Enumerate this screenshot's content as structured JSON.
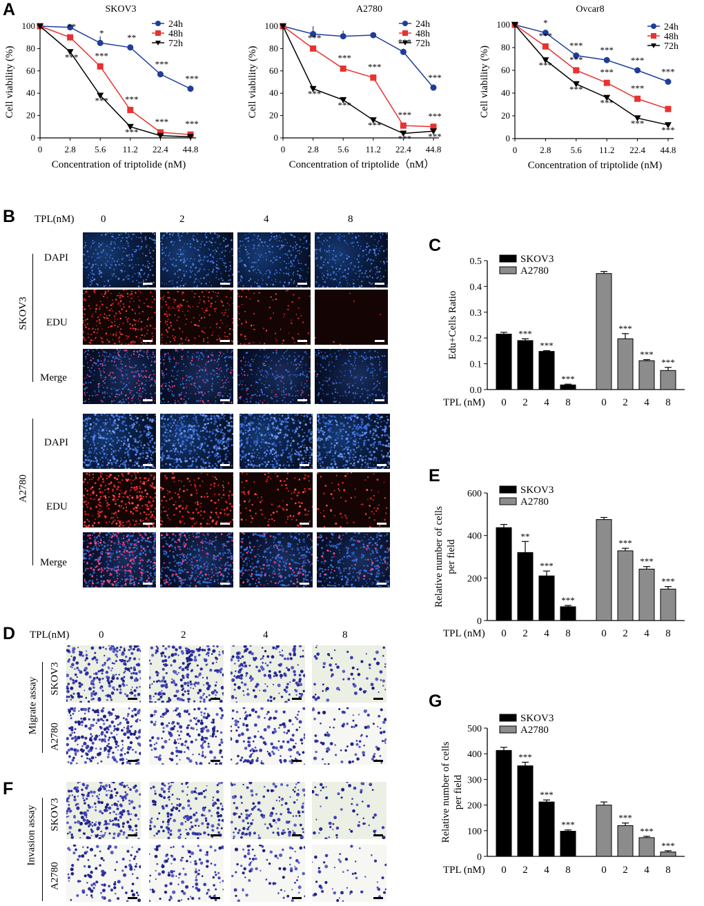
{
  "panels": {
    "a": "A",
    "b": "B",
    "c": "C",
    "d": "D",
    "e": "E",
    "f": "F",
    "g": "G"
  },
  "viability": {
    "ylabel": "Cell viability  (%)",
    "xlabel": "Concentration of triptolide (nM)",
    "xlabel_a2780": "Concentration of triptolide（nM）",
    "ticks_x": [
      "0",
      "2.8",
      "5.6",
      "11.2",
      "22.4",
      "44.8"
    ],
    "ticks_y": [
      "0",
      "20",
      "40",
      "60",
      "80",
      "100"
    ],
    "legend": [
      "24h",
      "48h",
      "72h"
    ]
  },
  "chart_data": [
    {
      "type": "line",
      "title": "SKOV3",
      "xlabel": "Concentration of triptolide (nM)",
      "ylabel": "Cell viability  (%)",
      "categories": [
        "0",
        "2.8",
        "5.6",
        "11.2",
        "22.4",
        "44.8"
      ],
      "ylim": [
        0,
        100
      ],
      "series": [
        {
          "name": "24h",
          "color": "#1f3d99",
          "marker": "circle",
          "values": [
            100,
            99,
            85,
            81,
            57,
            44
          ],
          "errors": [
            0,
            0,
            6,
            2,
            0,
            3
          ],
          "stars": [
            "",
            "",
            "*",
            "**",
            "***",
            "***"
          ]
        },
        {
          "name": "48h",
          "color": "#e8322f",
          "marker": "square",
          "values": [
            100,
            90,
            64,
            25,
            5,
            3
          ],
          "errors": [
            0,
            2,
            3,
            3,
            0,
            0
          ],
          "stars": [
            "",
            "**",
            "***",
            "***",
            "***",
            "***"
          ]
        },
        {
          "name": "72h",
          "color": "#000000",
          "marker": "triangle",
          "values": [
            100,
            77,
            38,
            10,
            2,
            1
          ],
          "errors": [
            0,
            0,
            2,
            0,
            0,
            0
          ],
          "stars": [
            "",
            "***",
            "***",
            "***",
            "",
            ""
          ]
        }
      ]
    },
    {
      "type": "line",
      "title": "A2780",
      "xlabel": "Concentration of triptolide（nM）",
      "ylabel": "Cell viability  (%)",
      "categories": [
        "0",
        "2.8",
        "5.6",
        "11.2",
        "22.4",
        "44.8"
      ],
      "ylim": [
        0,
        100
      ],
      "series": [
        {
          "name": "24h",
          "color": "#1f3d99",
          "marker": "circle",
          "values": [
            100,
            93,
            91,
            92,
            77,
            45
          ],
          "errors": [
            0,
            7,
            5,
            0,
            3,
            3
          ],
          "stars": [
            "",
            "",
            "",
            "",
            "***",
            "***"
          ]
        },
        {
          "name": "48h",
          "color": "#e8322f",
          "marker": "square",
          "values": [
            100,
            80,
            62,
            54,
            11,
            10
          ],
          "errors": [
            0,
            0,
            0,
            0,
            0,
            0
          ],
          "stars": [
            "",
            "***",
            "***",
            "***",
            "***",
            "***"
          ]
        },
        {
          "name": "72h",
          "color": "#000000",
          "marker": "triangle",
          "values": [
            100,
            44,
            34,
            16,
            4,
            6
          ],
          "errors": [
            0,
            0,
            2,
            0,
            0,
            0
          ],
          "stars": [
            "",
            "***",
            "***",
            "***",
            "***",
            "***"
          ]
        }
      ]
    },
    {
      "type": "line",
      "title": "Ovcar8",
      "xlabel": "Concentration of triptolide (nM)",
      "ylabel": "Cell viability  (%)",
      "categories": [
        "0",
        "2.8",
        "5.6",
        "11.2",
        "22.4",
        "44.8"
      ],
      "ylim": [
        0,
        100
      ],
      "series": [
        {
          "name": "24h",
          "color": "#1f3d99",
          "marker": "circle",
          "values": [
            100,
            93,
            73,
            69,
            60,
            50
          ],
          "errors": [
            0,
            0,
            0,
            0,
            0,
            0
          ],
          "stars": [
            "",
            "*",
            "***",
            "***",
            "***",
            "***"
          ]
        },
        {
          "name": "48h",
          "color": "#e8322f",
          "marker": "square",
          "values": [
            100,
            81,
            60,
            49,
            35,
            26
          ],
          "errors": [
            0,
            0,
            0,
            0,
            0,
            0
          ],
          "stars": [
            "",
            "***",
            "***",
            "***",
            "***",
            ""
          ]
        },
        {
          "name": "72h",
          "color": "#000000",
          "marker": "triangle",
          "values": [
            100,
            69,
            48,
            36,
            18,
            12
          ],
          "errors": [
            0,
            0,
            0,
            0,
            0,
            0
          ],
          "stars": [
            "",
            "***",
            "***",
            "***",
            "***",
            "***"
          ]
        }
      ]
    },
    {
      "type": "bar",
      "panel": "C",
      "ylabel": "Edu+Cells Ratio",
      "xprefix": "TPL (nM)",
      "categories": [
        "0",
        "2",
        "4",
        "8"
      ],
      "ylim": [
        0,
        0.5
      ],
      "ticks_y": [
        "0.0",
        "0.1",
        "0.2",
        "0.3",
        "0.4",
        "0.5"
      ],
      "series": [
        {
          "name": "SKOV3",
          "color": "#000000",
          "values": [
            0.215,
            0.19,
            0.148,
            0.018
          ],
          "errors": [
            0.007,
            0.007,
            0.003,
            0.003
          ],
          "stars": [
            "",
            "***",
            "***",
            "***"
          ]
        },
        {
          "name": "A2780",
          "color": "#8c8c8c",
          "values": [
            0.45,
            0.197,
            0.112,
            0.074
          ],
          "errors": [
            0.008,
            0.02,
            0.004,
            0.012
          ],
          "stars": [
            "",
            "***",
            "***",
            "***"
          ]
        }
      ]
    },
    {
      "type": "bar",
      "panel": "E",
      "ylabel": "Relative number of cells per field",
      "xprefix": "TPL (nM)",
      "categories": [
        "0",
        "2",
        "4",
        "8"
      ],
      "ylim": [
        0,
        600
      ],
      "ticks_y": [
        "0",
        "200",
        "400",
        "600"
      ],
      "series": [
        {
          "name": "SKOV3",
          "color": "#000000",
          "values": [
            437,
            320,
            210,
            65
          ],
          "errors": [
            15,
            52,
            23,
            6
          ],
          "stars": [
            "",
            "**",
            "***",
            "***"
          ]
        },
        {
          "name": "A2780",
          "color": "#8c8c8c",
          "values": [
            475,
            328,
            242,
            148
          ],
          "errors": [
            10,
            12,
            12,
            12
          ],
          "stars": [
            "",
            "***",
            "***",
            "***"
          ]
        }
      ]
    },
    {
      "type": "bar",
      "panel": "G",
      "ylabel": "Relative number of cells per field",
      "xprefix": "TPL (nM)",
      "categories": [
        "0",
        "2",
        "4",
        "8"
      ],
      "ylim": [
        0,
        500
      ],
      "ticks_y": [
        "0",
        "100",
        "200",
        "300",
        "400",
        "500"
      ],
      "series": [
        {
          "name": "SKOV3",
          "color": "#000000",
          "values": [
            413,
            353,
            212,
            98
          ],
          "errors": [
            12,
            14,
            8,
            5
          ],
          "stars": [
            "",
            "***",
            "***",
            "***"
          ]
        },
        {
          "name": "A2780",
          "color": "#8c8c8c",
          "values": [
            200,
            120,
            73,
            17
          ],
          "errors": [
            12,
            10,
            5,
            5
          ],
          "stars": [
            "",
            "***",
            "***",
            "***"
          ]
        }
      ]
    }
  ],
  "panel_b": {
    "tpl": "TPL(nM)",
    "doses": [
      "0",
      "2",
      "4",
      "8"
    ],
    "lines": [
      "SKOV3",
      "A2780"
    ],
    "rows": [
      "DAPI",
      "EDU",
      "Merge"
    ]
  },
  "panel_df": {
    "tpl": "TPL(nM)",
    "doses": [
      "0",
      "2",
      "4",
      "8"
    ],
    "migrate": "Migrate  assay",
    "invasion": "Invasion assay",
    "lines": [
      "SKOV3",
      "A2780"
    ]
  },
  "bar_legend": [
    "SKOV3",
    "A2780"
  ],
  "tpl_axis": "TPL (nM)"
}
